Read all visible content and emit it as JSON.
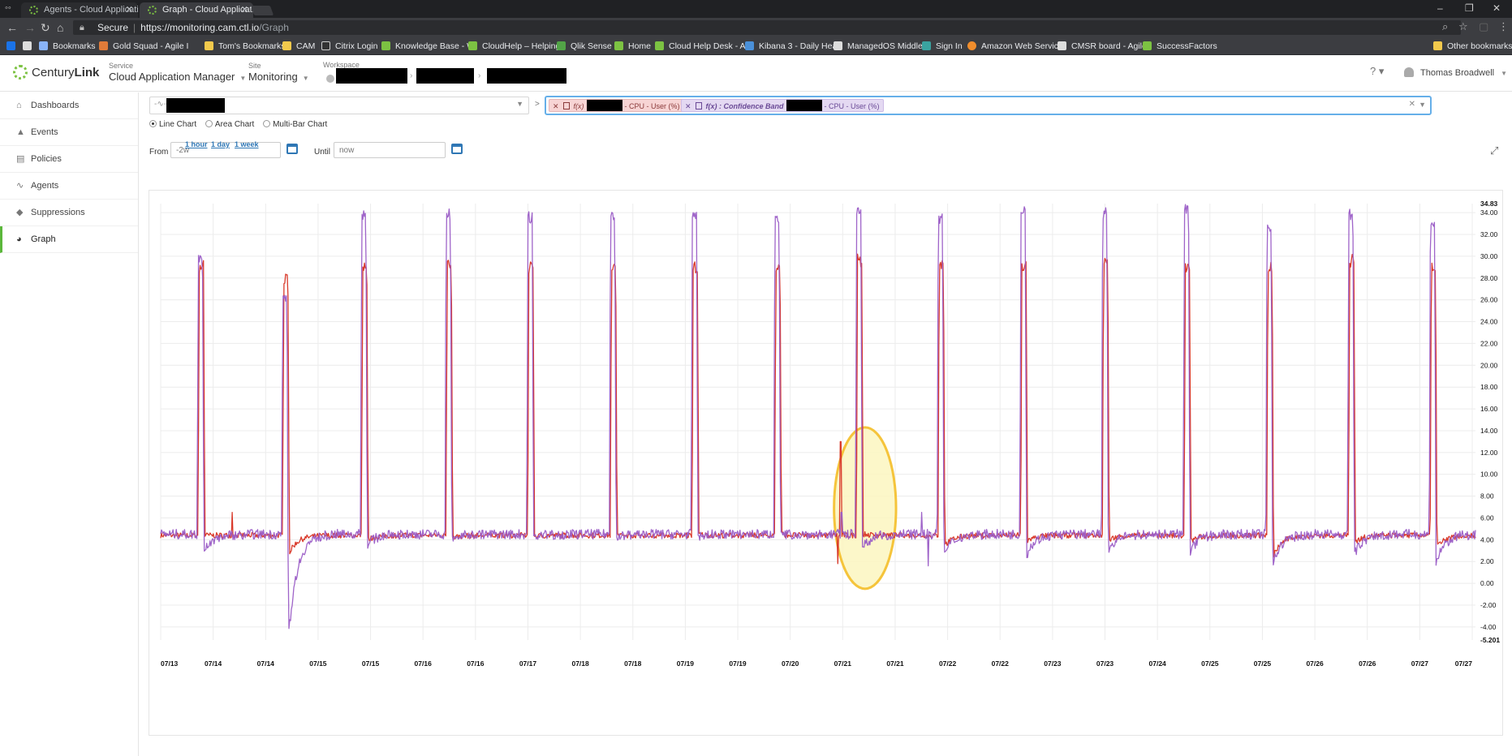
{
  "browser": {
    "menu_glyph": "◦◦",
    "tabs": [
      {
        "title": "Agents - Cloud Applicatio",
        "active": false
      },
      {
        "title": "Graph - Cloud Applicatio",
        "active": true
      }
    ],
    "security_label": "Secure",
    "url_host": "https://monitoring.cam.ctl.io",
    "url_path": "/Graph",
    "bookmarks": [
      {
        "label": "",
        "icon": "apps-icon",
        "color": "#1a73e8"
      },
      {
        "label": "Bookmarks",
        "icon": "star-icon",
        "color": "#8ab4f8"
      },
      {
        "label": "Gold Squad - Agile I",
        "icon": "jira-icon",
        "color": "#e07b39"
      },
      {
        "label": "Tom's Bookmarks",
        "icon": "folder-icon",
        "color": "#f2c94c"
      },
      {
        "label": "CAM",
        "icon": "folder-icon",
        "color": "#f2c94c"
      },
      {
        "label": "Citrix Login",
        "icon": "citrix-icon",
        "color": "#333333"
      },
      {
        "label": "Knowledge Base - W",
        "icon": "centurylink-icon",
        "color": "#7cc242"
      },
      {
        "label": "CloudHelp – Helping",
        "icon": "centurylink-icon",
        "color": "#7cc242"
      },
      {
        "label": "Qlik Sense",
        "icon": "qlik-icon",
        "color": "#52a447"
      },
      {
        "label": "Home",
        "icon": "centurylink-icon",
        "color": "#7cc242"
      },
      {
        "label": "Cloud Help Desk - A",
        "icon": "centurylink-icon",
        "color": "#7cc242"
      },
      {
        "label": "Kibana 3 - Daily Hea",
        "icon": "kibana-icon",
        "color": "#4a90d9"
      },
      {
        "label": "ManagedOS Middle",
        "icon": "page-icon",
        "color": "#dddddd"
      },
      {
        "label": "Sign In",
        "icon": "signin-icon",
        "color": "#3aa3a0"
      },
      {
        "label": "Amazon Web Servic",
        "icon": "aws-icon",
        "color": "#f08d2c"
      },
      {
        "label": "CMSR board - Agile",
        "icon": "page-icon",
        "color": "#dddddd"
      },
      {
        "label": "SuccessFactors",
        "icon": "centurylink-icon",
        "color": "#7cc242"
      },
      {
        "label": "Other bookmarks",
        "icon": "folder-icon",
        "color": "#f2c94c"
      }
    ]
  },
  "header": {
    "logo_text": "Century",
    "logo_bold": "Link",
    "service_label": "Service",
    "service_value": "Cloud Application Manager",
    "site_label": "Site",
    "site_value": "Monitoring",
    "workspace_label": "Workspace",
    "user_name": "Thomas Broadwell"
  },
  "sidebar": {
    "items": [
      {
        "label": "Dashboards",
        "icon": "home-icon",
        "glyph": "⌂",
        "active": false
      },
      {
        "label": "Events",
        "icon": "warning-icon",
        "glyph": "▲",
        "active": false
      },
      {
        "label": "Policies",
        "icon": "document-icon",
        "glyph": "▤",
        "active": false
      },
      {
        "label": "Agents",
        "icon": "pulse-icon",
        "glyph": "∿",
        "active": false
      },
      {
        "label": "Suppressions",
        "icon": "bell-icon",
        "glyph": "◆",
        "active": false
      },
      {
        "label": "Graph",
        "icon": "pie-chart-icon",
        "glyph": "◕",
        "active": true
      }
    ]
  },
  "controls": {
    "arrow": ">",
    "chips": [
      {
        "prefix": "f(x)",
        "suffix": "- CPU - User (%)",
        "color": "red"
      },
      {
        "prefix": "f(x) : Confidence Band",
        "suffix": "- CPU - User (%)",
        "color": "purple"
      }
    ],
    "chart_types": [
      {
        "label": "Line Chart",
        "checked": true
      },
      {
        "label": "Area Chart",
        "checked": false
      },
      {
        "label": "Multi-Bar Chart",
        "checked": false
      }
    ],
    "from_label": "From",
    "from_value": "-2w",
    "until_label": "Until",
    "until_placeholder": "now",
    "quick_ranges": [
      "1 hour",
      "1 day",
      "1 week"
    ]
  },
  "chart_data": {
    "type": "line",
    "title": "",
    "xlabel": "",
    "ylabel": "",
    "ylim": [
      -5.201,
      34.83
    ],
    "y_ticks": [
      "34.83",
      "34.00",
      "32.00",
      "30.00",
      "28.00",
      "26.00",
      "24.00",
      "22.00",
      "20.00",
      "18.00",
      "16.00",
      "14.00",
      "12.00",
      "10.00",
      "8.00",
      "6.00",
      "4.00",
      "2.00",
      "0.00",
      "-2.00",
      "-4.00",
      "-5.201"
    ],
    "y_tick_values": [
      34.83,
      34,
      32,
      30,
      28,
      26,
      24,
      22,
      20,
      18,
      16,
      14,
      12,
      10,
      8,
      6,
      4,
      2,
      0,
      -2,
      -4,
      -5.201
    ],
    "x_ticks": [
      "07/13",
      "07/14",
      "07/14",
      "07/15",
      "07/15",
      "07/16",
      "07/16",
      "07/17",
      "07/18",
      "07/18",
      "07/19",
      "07/19",
      "07/20",
      "07/21",
      "07/21",
      "07/22",
      "07/22",
      "07/23",
      "07/23",
      "07/24",
      "07/25",
      "07/25",
      "07/26",
      "07/26",
      "07/27",
      "07/27"
    ],
    "x_range_days": [
      0,
      14
    ],
    "grid": true,
    "highlight": {
      "center_day": 7.5,
      "center_value": 6.9,
      "half_width_days": 0.33,
      "half_height": 7.4,
      "color": "#f5c43b"
    },
    "series": [
      {
        "color": "#d93a2b",
        "baseline": 4.4,
        "spikes": [
          {
            "day": 0.41,
            "peak": 29.6,
            "dip": 4.4
          },
          {
            "day": 1.31,
            "peak": 28.4,
            "dip": 2.8
          },
          {
            "day": 2.15,
            "peak": 29.5,
            "dip": 4.0
          },
          {
            "day": 3.05,
            "peak": 29.7,
            "dip": 4.2
          },
          {
            "day": 3.92,
            "peak": 29.6,
            "dip": 4.3
          },
          {
            "day": 4.8,
            "peak": 29.6,
            "dip": 4.4
          },
          {
            "day": 5.67,
            "peak": 29.6,
            "dip": 4.5
          },
          {
            "day": 6.55,
            "peak": 29.6,
            "dip": 4.5
          },
          {
            "day": 7.42,
            "peak": 30.2,
            "dip": 4.5
          },
          {
            "day": 8.29,
            "peak": 29.7,
            "dip": 3.5
          },
          {
            "day": 9.17,
            "peak": 29.7,
            "dip": 3.9
          },
          {
            "day": 10.04,
            "peak": 30.2,
            "dip": 4.0
          },
          {
            "day": 10.91,
            "peak": 29.7,
            "dip": 3.9
          },
          {
            "day": 11.79,
            "peak": 29.6,
            "dip": 2.5
          },
          {
            "day": 12.66,
            "peak": 30.2,
            "dip": 3.8
          },
          {
            "day": 13.53,
            "peak": 29.5,
            "dip": 3.3
          }
        ],
        "anomalies": [
          {
            "day": 7.24,
            "value": 13.0
          },
          {
            "day": 7.21,
            "value": 1.8
          },
          {
            "day": 0.76,
            "value": 6.5
          }
        ]
      },
      {
        "color": "#9a5cc6",
        "baseline": 4.5,
        "spikes": [
          {
            "day": 0.4,
            "peak": 30.4,
            "dip": 2.8
          },
          {
            "day": 1.3,
            "peak": 26.5,
            "dip": -5.1
          },
          {
            "day": 2.14,
            "peak": 34.2,
            "dip": 3.5
          },
          {
            "day": 3.04,
            "peak": 34.5,
            "dip": 4.0
          },
          {
            "day": 3.91,
            "peak": 34.1,
            "dip": 4.2
          },
          {
            "day": 4.79,
            "peak": 34.2,
            "dip": 4.2
          },
          {
            "day": 5.66,
            "peak": 34.2,
            "dip": 4.3
          },
          {
            "day": 6.54,
            "peak": 34.1,
            "dip": 4.4
          },
          {
            "day": 7.41,
            "peak": 34.5,
            "dip": 3.2
          },
          {
            "day": 8.28,
            "peak": 34.1,
            "dip": 2.5
          },
          {
            "day": 9.16,
            "peak": 34.6,
            "dip": 2.6
          },
          {
            "day": 10.03,
            "peak": 34.6,
            "dip": 2.8
          },
          {
            "day": 10.9,
            "peak": 34.8,
            "dip": 2.8
          },
          {
            "day": 11.78,
            "peak": 33.2,
            "dip": 1.6
          },
          {
            "day": 12.65,
            "peak": 34.5,
            "dip": 2.6
          },
          {
            "day": 13.52,
            "peak": 33.4,
            "dip": 1.7
          }
        ],
        "anomalies": [
          {
            "day": 7.25,
            "value": 6.5
          },
          {
            "day": 8.1,
            "value": 6.5
          },
          {
            "day": 8.17,
            "value": 1.6
          }
        ]
      }
    ]
  }
}
